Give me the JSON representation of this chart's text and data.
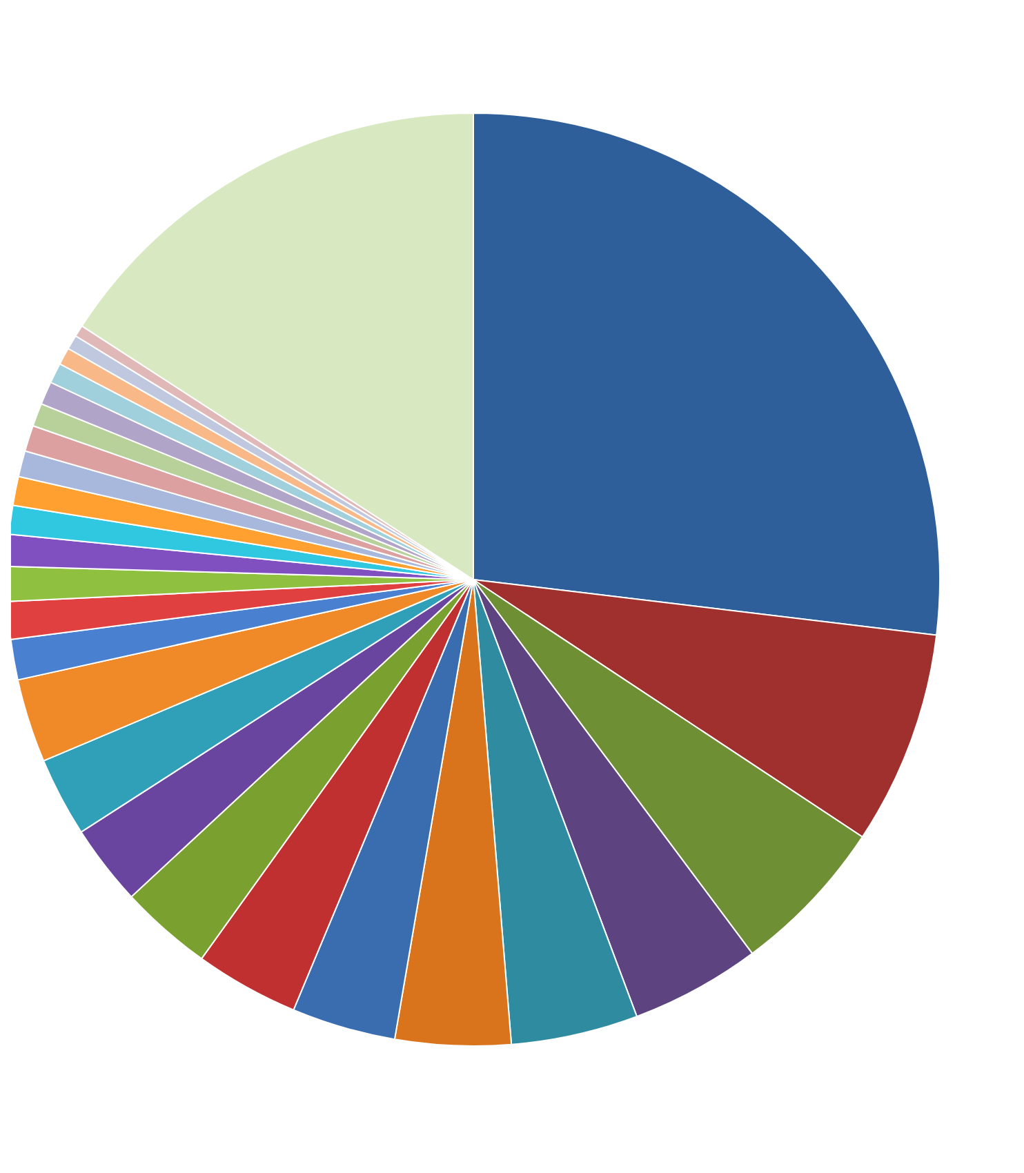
{
  "chart_data": {
    "type": "pie",
    "categories": [
      null,
      null,
      null,
      null,
      null,
      null,
      null,
      null,
      null,
      null,
      null,
      null,
      null,
      null,
      null,
      null,
      null,
      null,
      null,
      null,
      null,
      null,
      null,
      null,
      null,
      null,
      null
    ],
    "values": [
      26.9,
      7.4,
      5.5,
      4.5,
      4.4,
      4.0,
      3.6,
      3.6,
      3.2,
      2.8,
      2.75,
      2.9,
      1.4,
      1.3,
      1.2,
      1.1,
      1.0,
      1.0,
      0.9,
      0.9,
      0.8,
      0.8,
      0.7,
      0.6,
      0.5,
      0.4,
      15.85
    ],
    "colors": [
      "#2e5f9a",
      "#a0302d",
      "#6f8f35",
      "#5d4480",
      "#2f8ba0",
      "#d9731c",
      "#3a6db0",
      "#c03030",
      "#7aa030",
      "#6a45a0",
      "#30a0b8",
      "#f08a28",
      "#4a80d0",
      "#e04040",
      "#90c040",
      "#8050c0",
      "#30c8e0",
      "#ffa030",
      "#a8b8dc",
      "#dca0a0",
      "#b8d09a",
      "#b0a4c8",
      "#a0d0dc",
      "#f8b888",
      "#c0c8e0",
      "#e0b8b8",
      "#d8e8c0"
    ]
  }
}
